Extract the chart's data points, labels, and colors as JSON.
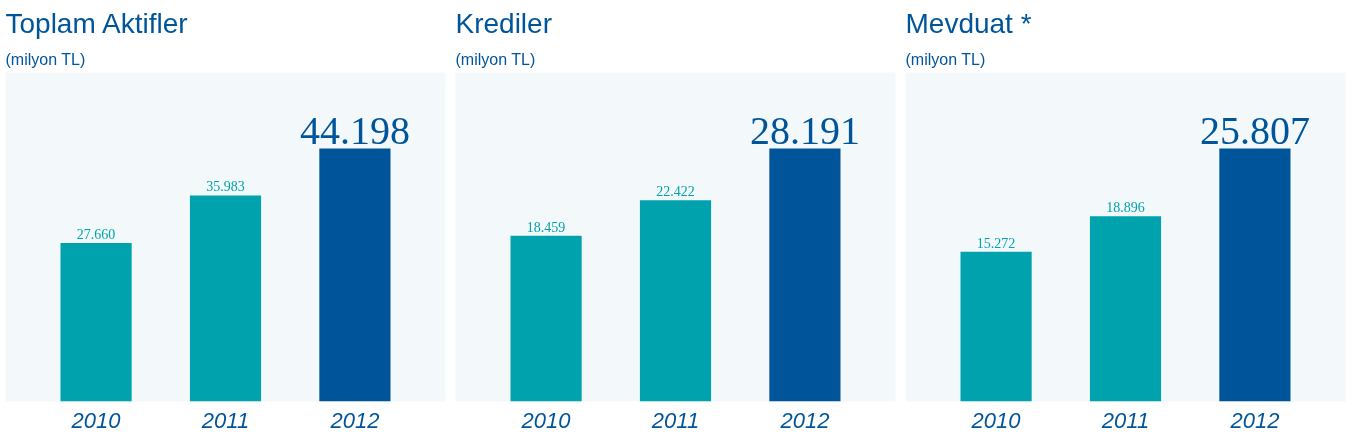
{
  "chart_data": [
    {
      "type": "bar",
      "title": "Toplam Aktifler",
      "subtitle": "(milyon TL)",
      "categories": [
        "2010",
        "2011",
        "2012"
      ],
      "values": [
        27660,
        35983,
        44198
      ],
      "value_labels": [
        "27.660",
        "35.983",
        "44.198"
      ],
      "colors": [
        "#00a3ad",
        "#00a3ad",
        "#00559a"
      ]
    },
    {
      "type": "bar",
      "title": "Krediler",
      "subtitle": "(milyon TL)",
      "categories": [
        "2010",
        "2011",
        "2012"
      ],
      "values": [
        18459,
        22422,
        28191
      ],
      "value_labels": [
        "18.459",
        "22.422",
        "28.191"
      ],
      "colors": [
        "#00a3ad",
        "#00a3ad",
        "#00559a"
      ]
    },
    {
      "type": "bar",
      "title": "Mevduat *",
      "subtitle": "(milyon TL)",
      "categories": [
        "2010",
        "2011",
        "2012"
      ],
      "values": [
        15272,
        18896,
        25807
      ],
      "value_labels": [
        "15.272",
        "18.896",
        "25.807"
      ],
      "colors": [
        "#00a3ad",
        "#00a3ad",
        "#00559a"
      ]
    }
  ]
}
